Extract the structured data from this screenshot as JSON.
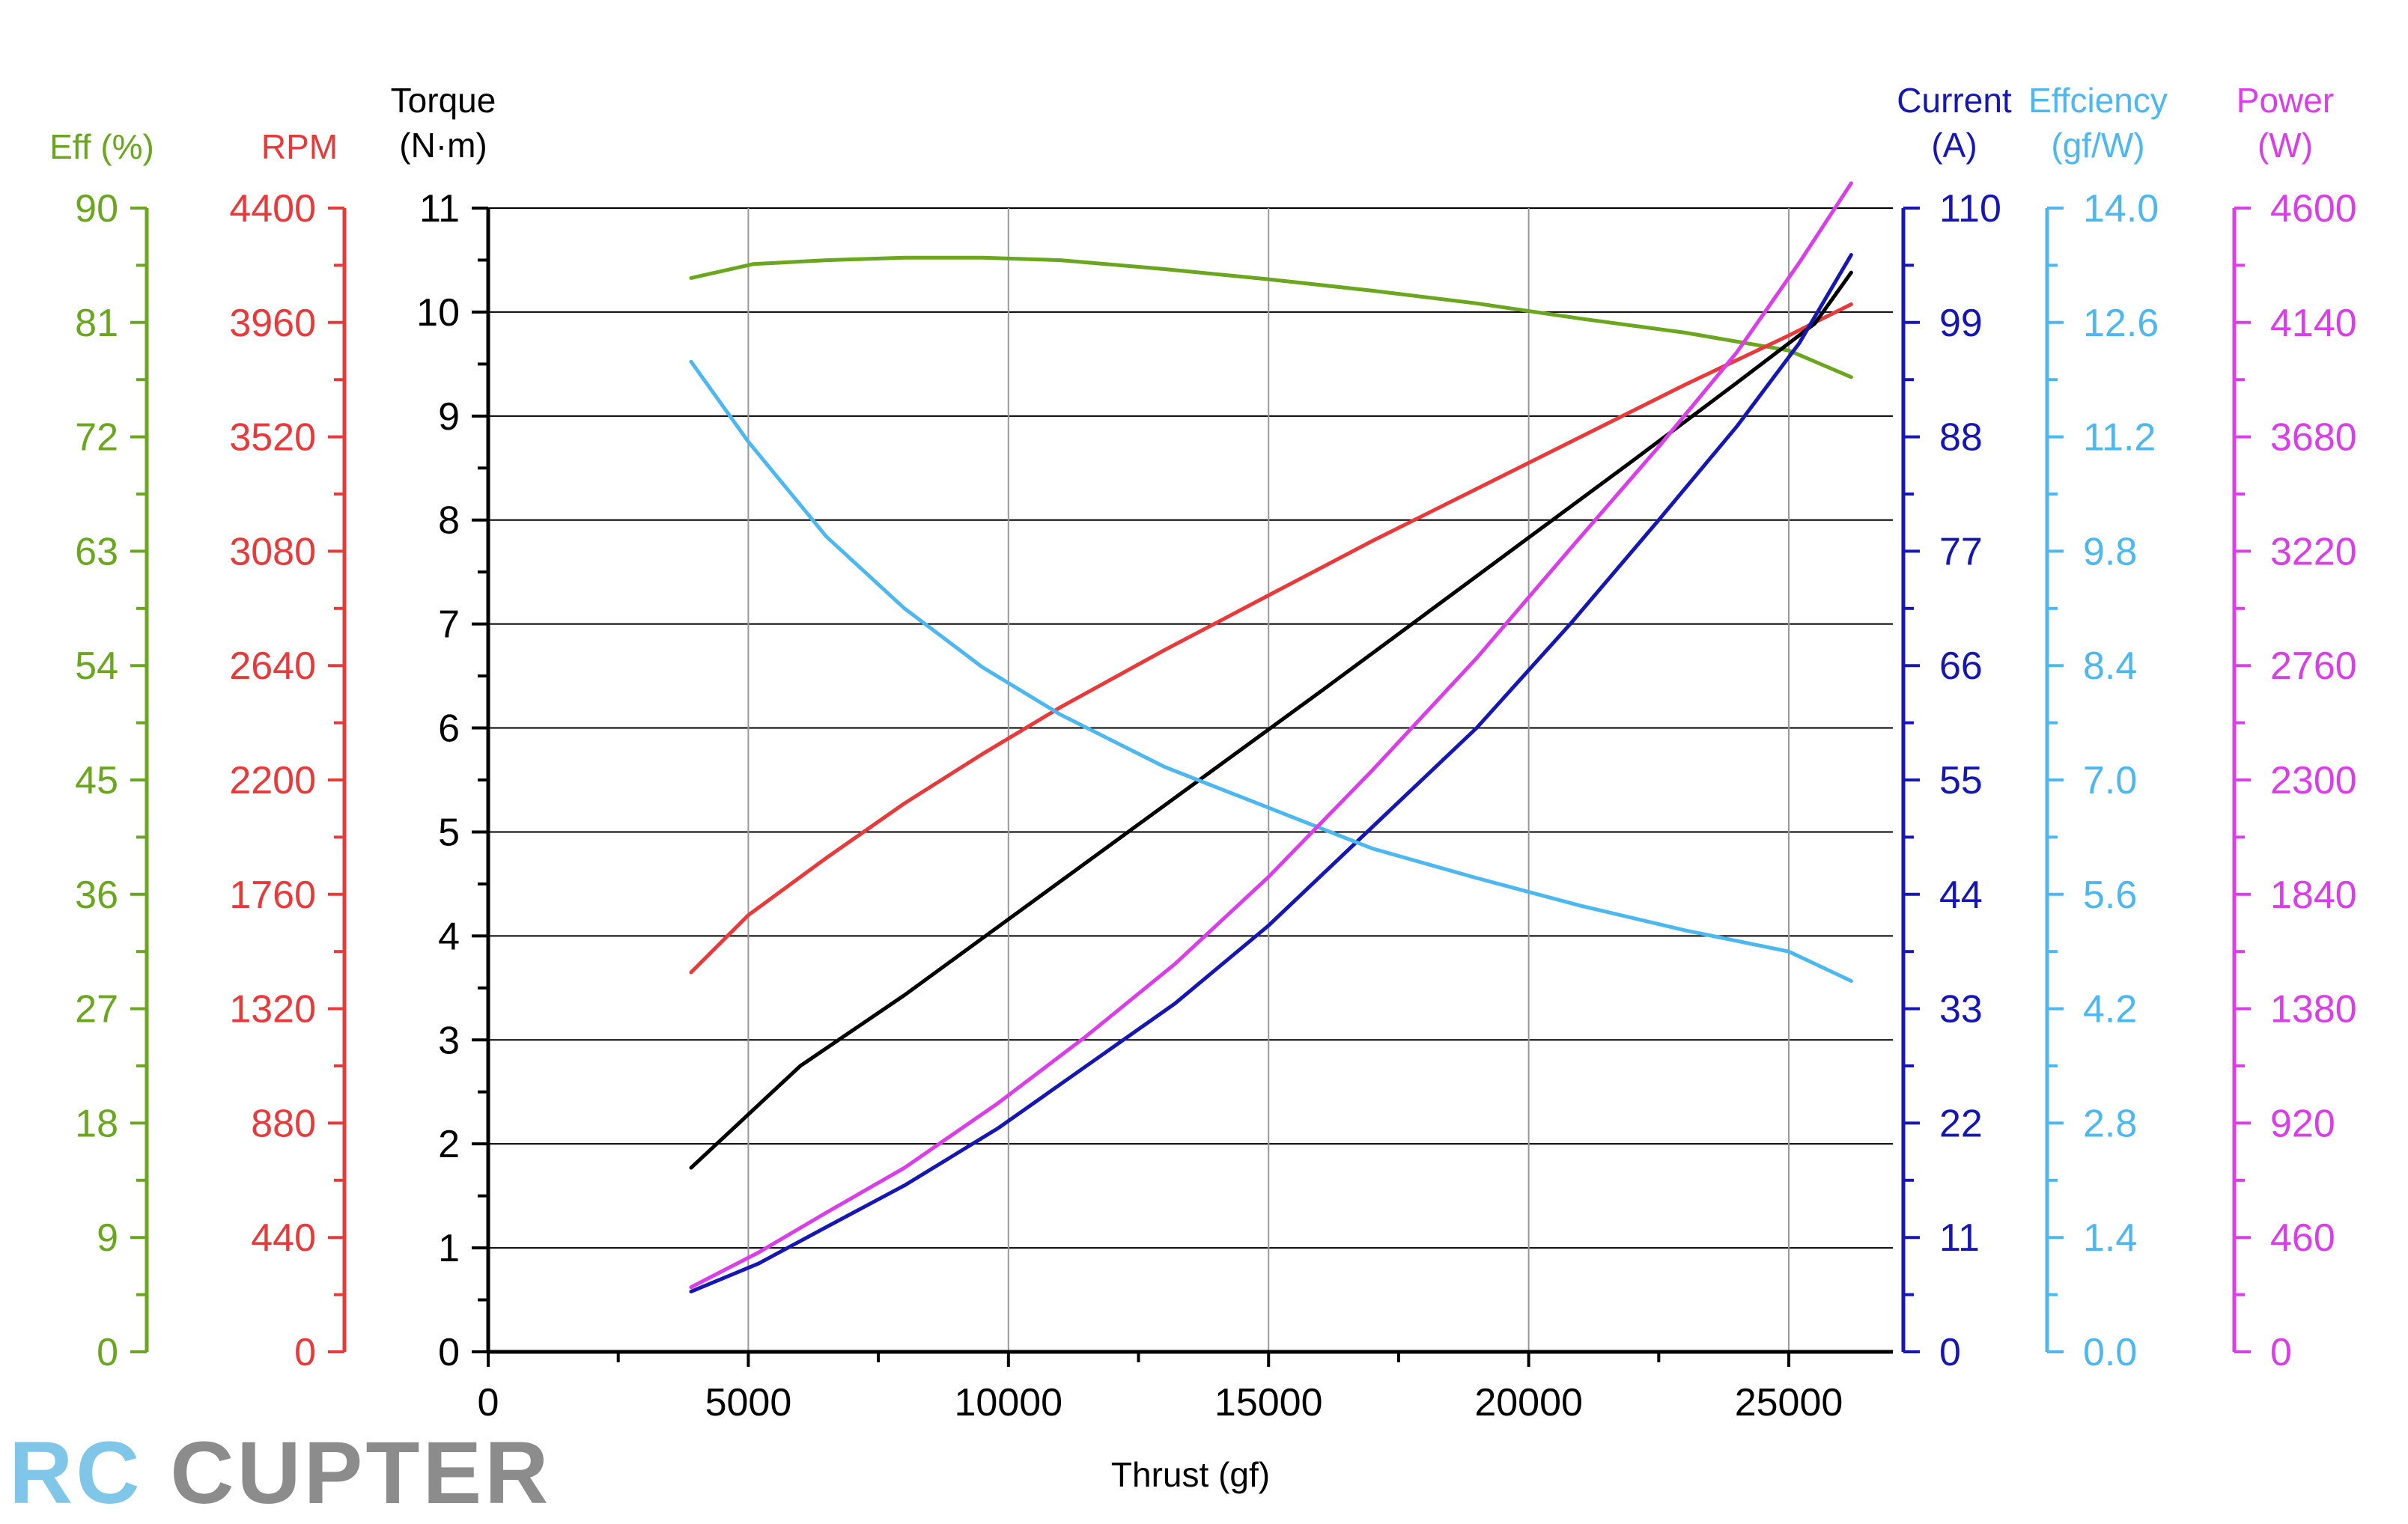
{
  "chart_data": {
    "type": "line",
    "xlabel": "Thrust (gf)",
    "x_ticks": [
      0,
      5000,
      10000,
      15000,
      20000,
      25000
    ],
    "xlim": [
      0,
      27000
    ],
    "grid": true,
    "axes": [
      {
        "key": "eff",
        "title": [
          "Eff (%)"
        ],
        "color": "#6aa61e",
        "side": "left",
        "ylim": [
          0,
          90
        ],
        "ticks": [
          0,
          9,
          18,
          27,
          36,
          45,
          54,
          63,
          72,
          81,
          90
        ],
        "decimals": 0
      },
      {
        "key": "rpm",
        "title": [
          "RPM"
        ],
        "color": "#e83a3a",
        "side": "left",
        "ylim": [
          0,
          4400
        ],
        "ticks": [
          0,
          440,
          880,
          1320,
          1760,
          2200,
          2640,
          3080,
          3520,
          3960,
          4400
        ],
        "decimals": 0
      },
      {
        "key": "torque",
        "title": [
          "Torque",
          "(N·m)"
        ],
        "color": "#000000",
        "side": "left",
        "ylim": [
          0,
          11
        ],
        "ticks": [
          0,
          1,
          2,
          3,
          4,
          5,
          6,
          7,
          8,
          9,
          10,
          11
        ],
        "decimals": 0
      },
      {
        "key": "current",
        "title": [
          "Current",
          "(A)"
        ],
        "color": "#1616b4",
        "side": "right",
        "ylim": [
          0,
          110
        ],
        "ticks": [
          0,
          11,
          22,
          33,
          44,
          55,
          66,
          77,
          88,
          99,
          110
        ],
        "decimals": 0
      },
      {
        "key": "efficiency",
        "title": [
          "Effciency",
          "(gf/W)"
        ],
        "color": "#4cb8ef",
        "side": "right",
        "ylim": [
          0,
          14
        ],
        "ticks": [
          0,
          1.4,
          2.8,
          4.2,
          5.6,
          7.0,
          8.4,
          9.8,
          11.2,
          12.6,
          14.0
        ],
        "decimals": 1
      },
      {
        "key": "power",
        "title": [
          "Power",
          "(W)"
        ],
        "color": "#d93ee8",
        "side": "right",
        "ylim": [
          0,
          4600
        ],
        "ticks": [
          0,
          460,
          920,
          1380,
          1840,
          2300,
          2760,
          3220,
          3680,
          4140,
          4600
        ],
        "decimals": 0
      }
    ],
    "series": [
      {
        "axis": "eff",
        "color": "#6aa61e",
        "x": [
          3900,
          5100,
          6500,
          8000,
          9500,
          11000,
          13000,
          15000,
          17000,
          19000,
          21000,
          23000,
          25000,
          26200
        ],
        "y": [
          84.5,
          85.6,
          85.9,
          86.1,
          86.1,
          85.9,
          85.2,
          84.4,
          83.5,
          82.5,
          81.3,
          80.2,
          78.8,
          76.7
        ]
      },
      {
        "axis": "rpm",
        "color": "#e83a3a",
        "x": [
          3900,
          5000,
          6500,
          8000,
          9500,
          11000,
          13000,
          15000,
          17000,
          19000,
          21000,
          23000,
          25000,
          26200
        ],
        "y": [
          1460,
          1680,
          1900,
          2110,
          2300,
          2480,
          2700,
          2910,
          3120,
          3320,
          3520,
          3720,
          3910,
          4030
        ]
      },
      {
        "axis": "torque",
        "color": "#000000",
        "x": [
          3900,
          6000,
          8000,
          10000,
          12000,
          14000,
          16000,
          18000,
          20000,
          22000,
          24000,
          25500,
          26200
        ],
        "y": [
          1.77,
          2.75,
          3.43,
          4.16,
          4.89,
          5.62,
          6.35,
          7.09,
          7.83,
          8.57,
          9.32,
          9.89,
          10.38
        ]
      },
      {
        "axis": "current",
        "color": "#1616b4",
        "x": [
          3900,
          5200,
          6500,
          8000,
          9800,
          11500,
          13200,
          15000,
          17000,
          19000,
          20800,
          22500,
          24000,
          25200,
          26200
        ],
        "y": [
          5.8,
          8.5,
          12.0,
          16.0,
          21.5,
          27.5,
          33.5,
          41.0,
          50.5,
          60.0,
          70.0,
          80.0,
          89.0,
          97.0,
          105.5
        ]
      },
      {
        "axis": "efficiency",
        "color": "#4cb8ef",
        "x": [
          3900,
          5000,
          6500,
          8000,
          9500,
          11000,
          13000,
          15000,
          17000,
          19000,
          21000,
          23000,
          25000,
          26200
        ],
        "y": [
          12.12,
          11.14,
          9.98,
          9.1,
          8.38,
          7.8,
          7.16,
          6.66,
          6.16,
          5.8,
          5.46,
          5.16,
          4.9,
          4.54
        ]
      },
      {
        "axis": "power",
        "color": "#d93ee8",
        "x": [
          3900,
          5200,
          6500,
          8000,
          9800,
          11500,
          13200,
          15000,
          17000,
          19000,
          20800,
          22500,
          24000,
          25200,
          26200
        ],
        "y": [
          260,
          400,
          560,
          740,
          1000,
          1270,
          1560,
          1910,
          2340,
          2790,
          3230,
          3640,
          4020,
          4380,
          4700
        ]
      }
    ]
  },
  "watermark": {
    "part1": "RC",
    "part2": "CUPTER"
  }
}
